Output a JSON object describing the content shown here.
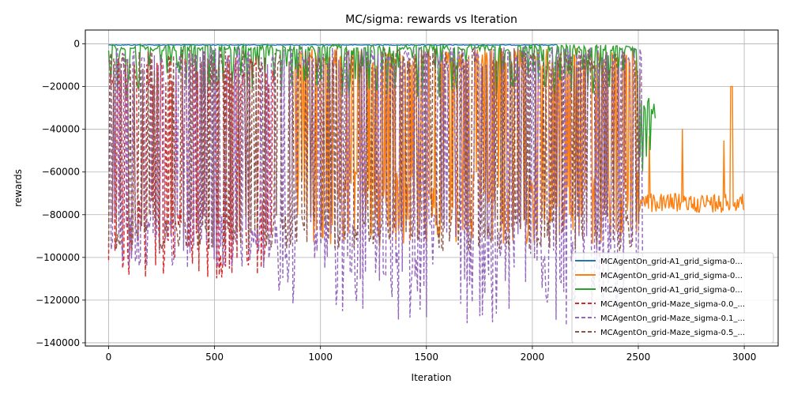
{
  "chart_data": {
    "type": "line",
    "title": "MC/sigma: rewards vs Iteration",
    "xlabel": "Iteration",
    "ylabel": "rewards",
    "xlim": [
      -110,
      3160
    ],
    "ylim": [
      -141500,
      6500
    ],
    "x_ticks": [
      0,
      500,
      1000,
      1500,
      2000,
      2500,
      3000
    ],
    "y_ticks": [
      0,
      -20000,
      -40000,
      -60000,
      -80000,
      -100000,
      -120000,
      -140000
    ],
    "grid": true,
    "legend_position": "lower-right",
    "series": [
      {
        "name": "MCAgentOn_grid-A1_grid_sigma-0...",
        "color": "#1f77b4",
        "style": "solid",
        "x_end": 2120,
        "points": [
          [
            0,
            -9000
          ],
          [
            5,
            -500
          ],
          [
            330,
            -500
          ],
          [
            335,
            -102000
          ],
          [
            340,
            -500
          ],
          [
            2120,
            -500
          ]
        ]
      },
      {
        "name": "MCAgentOn_grid-A1_grid_sigma-0...",
        "color": "#ff7f0e",
        "style": "solid",
        "x_end": 3000,
        "points": [
          [
            880,
            -5000
          ],
          [
            900,
            -75000
          ],
          [
            905,
            -126000
          ],
          [
            910,
            -70000
          ],
          [
            1050,
            -122000
          ],
          [
            1100,
            -65000
          ],
          [
            1800,
            -62000
          ],
          [
            2500,
            -72000
          ],
          [
            2600,
            -74000
          ],
          [
            2690,
            -38000
          ],
          [
            2700,
            -73000
          ],
          [
            2850,
            -39000
          ],
          [
            2855,
            -94000
          ],
          [
            2860,
            -73000
          ],
          [
            2940,
            -20000
          ],
          [
            2945,
            -75000
          ],
          [
            3000,
            -70000
          ]
        ]
      },
      {
        "name": "MCAgentOn_grid-A1_grid_sigma-0...",
        "color": "#2ca02c",
        "style": "solid",
        "x_end": 2580,
        "points": [
          [
            0,
            -8000
          ],
          [
            10,
            -500
          ],
          [
            500,
            -500
          ],
          [
            800,
            -5000
          ],
          [
            870,
            -500
          ],
          [
            1000,
            -10000
          ],
          [
            1500,
            -8000
          ],
          [
            2000,
            -10000
          ],
          [
            2500,
            -25000
          ],
          [
            2530,
            -60000
          ],
          [
            2560,
            -55000
          ],
          [
            2575,
            -40000
          ],
          [
            2580,
            -2000
          ]
        ]
      },
      {
        "name": "MCAgentOn_grid-Maze_sigma-0.0_...",
        "color": "#d62728",
        "style": "dashed",
        "x_end": 780,
        "points": [
          [
            0,
            -107000
          ],
          [
            100,
            -80000
          ],
          [
            200,
            -110000
          ],
          [
            300,
            -95000
          ],
          [
            400,
            -100000
          ],
          [
            500,
            -92000
          ],
          [
            650,
            -107000
          ],
          [
            780,
            -117000
          ]
        ]
      },
      {
        "name": "MCAgentOn_grid-Maze_sigma-0.1_...",
        "color": "#9467bd",
        "style": "dashed",
        "x_end": 2520,
        "points": [
          [
            0,
            -101000
          ],
          [
            1000,
            -131000
          ],
          [
            1400,
            -134000
          ],
          [
            2520,
            -129000
          ]
        ]
      },
      {
        "name": "MCAgentOn_grid-Maze_sigma-0.5_...",
        "color": "#8c564b",
        "style": "dashed",
        "x_end": 2510,
        "points": [
          [
            0,
            -92000
          ],
          [
            1000,
            -95000
          ],
          [
            2000,
            -97000
          ],
          [
            2510,
            -96000
          ]
        ]
      }
    ]
  }
}
